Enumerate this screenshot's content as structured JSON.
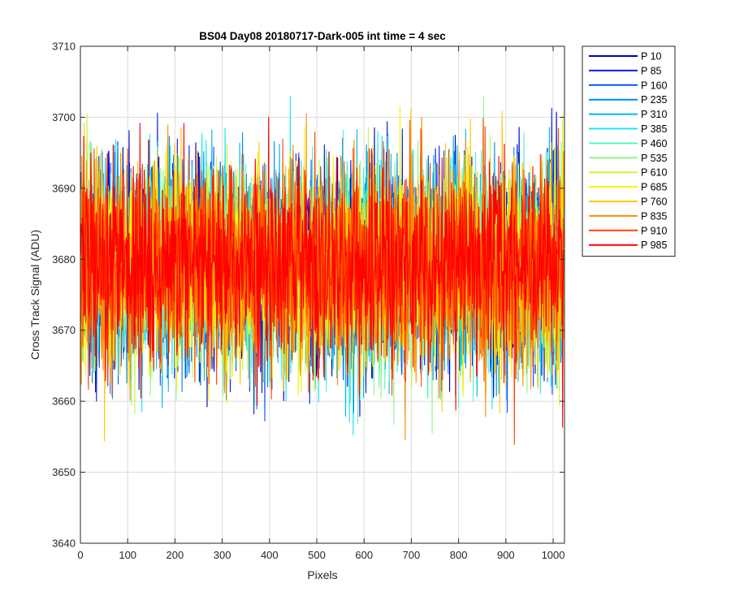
{
  "chart_data": {
    "type": "line",
    "title": "BS04 Day08 20180717-Dark-005 int time = 4 sec",
    "xlabel": "Pixels",
    "ylabel": "Cross Track Signal (ADU)",
    "xlim": [
      0,
      1024
    ],
    "ylim": [
      3640,
      3710
    ],
    "xticks": [
      0,
      100,
      200,
      300,
      400,
      500,
      600,
      700,
      800,
      900,
      1000
    ],
    "yticks": [
      3640,
      3650,
      3660,
      3670,
      3680,
      3690,
      3700,
      3710
    ],
    "grid": true,
    "legend_position": "outside-top-right",
    "n_points": 1024,
    "mean": 3679,
    "spread": 9,
    "series": [
      {
        "name": "P 10",
        "color": "#0000bf",
        "seed": 11
      },
      {
        "name": "P 85",
        "color": "#0022e6",
        "seed": 23
      },
      {
        "name": "P 160",
        "color": "#0055f5",
        "seed": 37
      },
      {
        "name": "P 235",
        "color": "#0088f0",
        "seed": 41
      },
      {
        "name": "P 310",
        "color": "#00b8f0",
        "seed": 53
      },
      {
        "name": "P 385",
        "color": "#18e6f0",
        "seed": 67
      },
      {
        "name": "P 460",
        "color": "#5af0c8",
        "seed": 71
      },
      {
        "name": "P 535",
        "color": "#90f590",
        "seed": 83
      },
      {
        "name": "P 610",
        "color": "#c8f545",
        "seed": 97
      },
      {
        "name": "P 685",
        "color": "#f5f500",
        "seed": 101
      },
      {
        "name": "P 760",
        "color": "#ffc800",
        "seed": 113
      },
      {
        "name": "P 835",
        "color": "#ff8c00",
        "seed": 127
      },
      {
        "name": "P 910",
        "color": "#ff4600",
        "seed": 131
      },
      {
        "name": "P 985",
        "color": "#ff0000",
        "seed": 149
      }
    ]
  }
}
